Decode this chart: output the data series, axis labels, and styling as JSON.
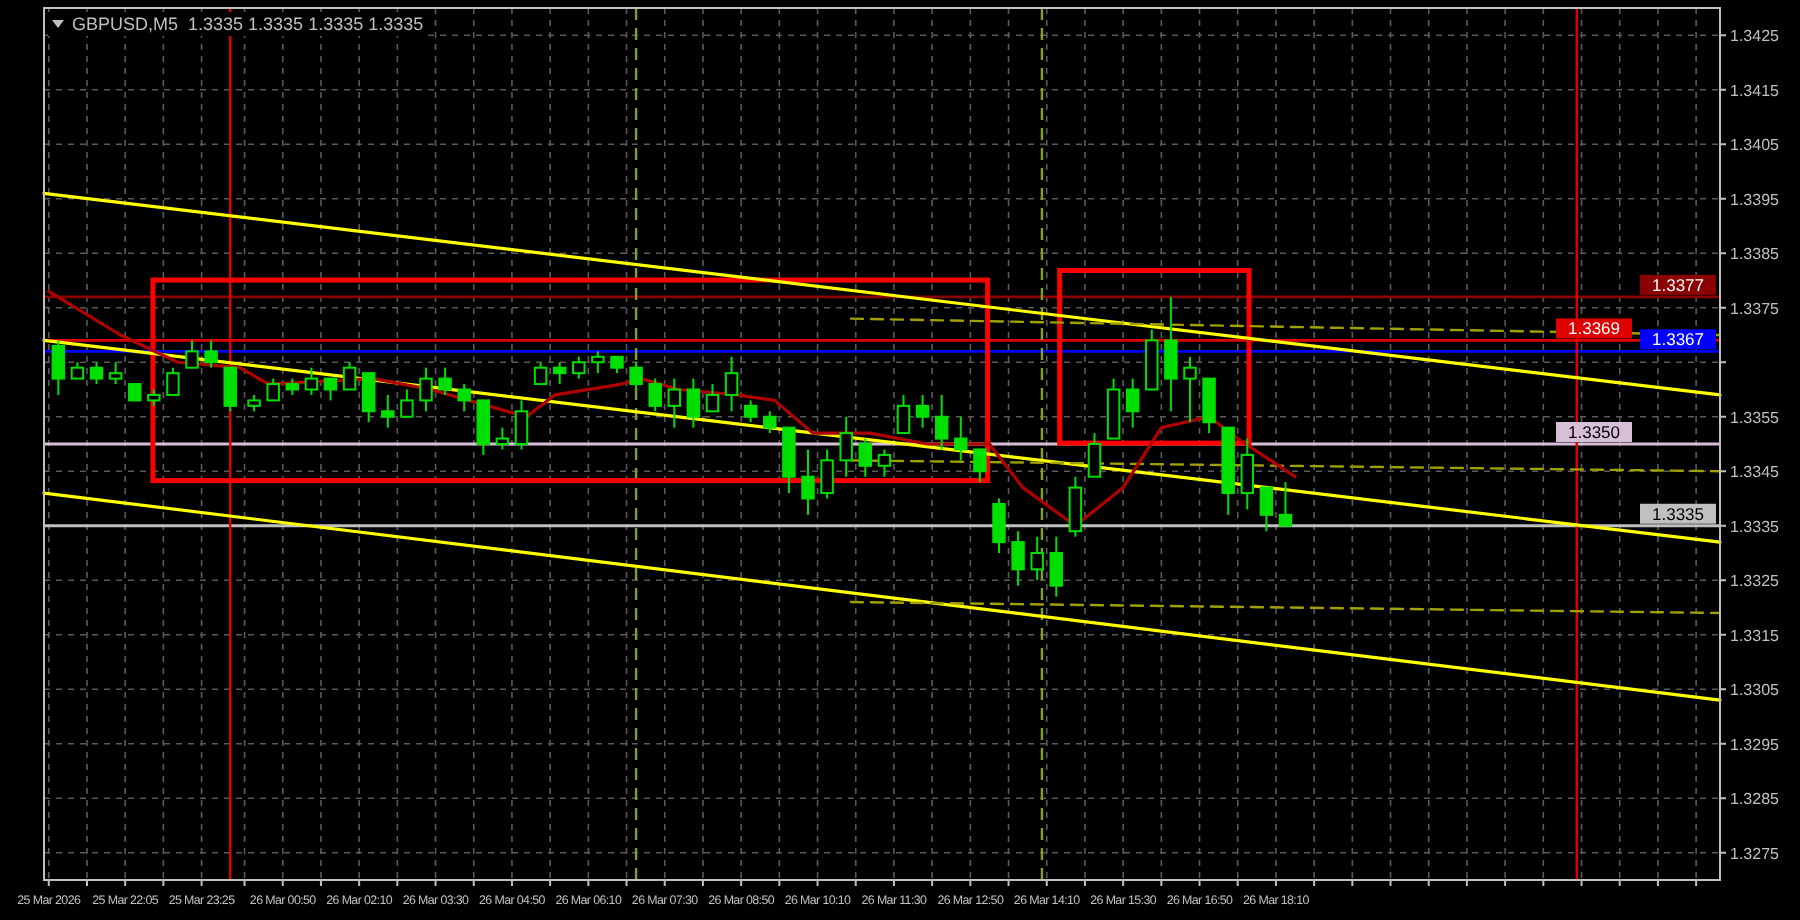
{
  "chart_data": {
    "type": "candlestick",
    "title": "GBPUSD,M5  1.3335 1.3335 1.3335 1.3335",
    "xlim": [
      "2026-03-25T20:40",
      "2026-03-27T01:55"
    ],
    "ylim": [
      1.327,
      1.343
    ],
    "xticks": [
      {
        "value": "2026-03-25T20:45",
        "label": "25 Mar 2026"
      },
      {
        "value": "2026-03-25T21:25",
        "label": null
      },
      {
        "value": "2026-03-25T22:05",
        "label": "25 Mar 22:05"
      },
      {
        "value": "2026-03-25T22:45",
        "label": null
      },
      {
        "value": "2026-03-25T23:25",
        "label": "25 Mar 23:25"
      },
      {
        "value": "2026-03-26T00:10",
        "label": null
      },
      {
        "value": "2026-03-26T00:50",
        "label": "26 Mar 00:50"
      },
      {
        "value": "2026-03-26T01:30",
        "label": null
      },
      {
        "value": "2026-03-26T02:10",
        "label": "26 Mar 02:10"
      },
      {
        "value": "2026-03-26T02:50",
        "label": null
      },
      {
        "value": "2026-03-26T03:30",
        "label": "26 Mar 03:30"
      },
      {
        "value": "2026-03-26T04:10",
        "label": null
      },
      {
        "value": "2026-03-26T04:50",
        "label": "26 Mar 04:50"
      },
      {
        "value": "2026-03-26T05:30",
        "label": null
      },
      {
        "value": "2026-03-26T06:10",
        "label": "26 Mar 06:10"
      },
      {
        "value": "2026-03-26T06:50",
        "label": null
      },
      {
        "value": "2026-03-26T07:30",
        "label": "26 Mar 07:30"
      },
      {
        "value": "2026-03-26T08:10",
        "label": null
      },
      {
        "value": "2026-03-26T08:50",
        "label": "26 Mar 08:50"
      },
      {
        "value": "2026-03-26T09:30",
        "label": null
      },
      {
        "value": "2026-03-26T10:10",
        "label": "26 Mar 10:10"
      },
      {
        "value": "2026-03-26T10:50",
        "label": null
      },
      {
        "value": "2026-03-26T11:30",
        "label": "26 Mar 11:30"
      },
      {
        "value": "2026-03-26T12:10",
        "label": null
      },
      {
        "value": "2026-03-26T12:50",
        "label": "26 Mar 12:50"
      },
      {
        "value": "2026-03-26T13:30",
        "label": null
      },
      {
        "value": "2026-03-26T14:10",
        "label": "26 Mar 14:10"
      },
      {
        "value": "2026-03-26T14:50",
        "label": null
      },
      {
        "value": "2026-03-26T15:30",
        "label": "26 Mar 15:30"
      },
      {
        "value": "2026-03-26T16:10",
        "label": null
      },
      {
        "value": "2026-03-26T16:50",
        "label": "26 Mar 16:50"
      },
      {
        "value": "2026-03-26T17:30",
        "label": null
      },
      {
        "value": "2026-03-26T18:10",
        "label": "26 Mar 18:10"
      },
      {
        "value": "2026-03-26T18:50",
        "label": null
      },
      {
        "value": "2026-03-26T19:30",
        "label": null
      },
      {
        "value": "2026-03-26T20:10",
        "label": null
      },
      {
        "value": "2026-03-26T20:50",
        "label": null
      },
      {
        "value": "2026-03-26T21:30",
        "label": null
      },
      {
        "value": "2026-03-26T22:10",
        "label": null
      },
      {
        "value": "2026-03-26T22:50",
        "label": null
      },
      {
        "value": "2026-03-26T23:30",
        "label": null
      },
      {
        "value": "2026-03-27T00:10",
        "label": null
      },
      {
        "value": "2026-03-27T00:50",
        "label": null
      },
      {
        "value": "2026-03-27T01:30",
        "label": null
      }
    ],
    "yticks": [
      1.3275,
      1.3285,
      1.3295,
      1.3305,
      1.3315,
      1.3325,
      1.3335,
      1.3345,
      1.3355,
      {
        "value": 1.3365,
        "label": null
      },
      1.3375,
      1.3385,
      1.3395,
      1.3405,
      1.3415,
      1.3425
    ],
    "grid": true,
    "ref_lines": [
      {
        "axis": "y",
        "value": 1.3377,
        "label": "1.3377",
        "color": "#8b0000"
      },
      {
        "axis": "y",
        "value": 1.3369,
        "label": "1.3369",
        "color": "#e00000"
      },
      {
        "axis": "y",
        "value": 1.3367,
        "label": "1.3367",
        "color": "#0000ff"
      },
      {
        "axis": "y",
        "value": 1.335,
        "label": "1.3350",
        "color": "#d8bfd8"
      },
      {
        "axis": "y",
        "value": 1.3335,
        "label": "1.3335",
        "color": "#c0c0c0"
      },
      {
        "axis": "x",
        "value": "2026-03-25T23:55",
        "color": "#e00000"
      },
      {
        "axis": "x",
        "value": "2026-03-26T23:25",
        "color": "#e00000"
      },
      {
        "axis": "x",
        "value": "2026-03-26T07:00",
        "color": "#7fa020",
        "line_style": "dashed"
      },
      {
        "axis": "x",
        "value": "2026-03-26T14:05",
        "color": "#7fa020",
        "line_style": "dashed"
      }
    ],
    "series": [
      {
        "type": "line",
        "color": "#ffff00",
        "x": [
          "2026-03-25T20:40",
          "2026-03-27T01:55"
        ],
        "values": [
          1.3396,
          1.3359
        ]
      },
      {
        "type": "line",
        "color": "#ffff00",
        "x": [
          "2026-03-25T20:40",
          "2026-03-27T01:55"
        ],
        "values": [
          1.3369,
          1.3332
        ]
      },
      {
        "type": "line",
        "color": "#ffff00",
        "x": [
          "2026-03-25T20:40",
          "2026-03-27T01:55"
        ],
        "values": [
          1.3341,
          1.3303
        ]
      },
      {
        "type": "line",
        "color": "#a0a000",
        "line_style": "dashed",
        "x": [
          "2026-03-26T10:45",
          "2026-03-27T01:55"
        ],
        "values": [
          1.3373,
          1.337
        ]
      },
      {
        "type": "line",
        "color": "#a0a000",
        "line_style": "dashed",
        "x": [
          "2026-03-26T10:45",
          "2026-03-27T01:55"
        ],
        "values": [
          1.3347,
          1.3345
        ]
      },
      {
        "type": "line",
        "color": "#a0a000",
        "line_style": "dashed",
        "x": [
          "2026-03-26T10:45",
          "2026-03-27T01:55"
        ],
        "values": [
          1.3321,
          1.3319
        ]
      },
      {
        "type": "line",
        "color": "#b00000",
        "x": [
          "2026-03-25T20:45",
          "2026-03-25T22:00",
          "2026-03-25T23:00",
          "2026-03-26T00:05",
          "2026-03-26T00:35",
          "2026-03-26T02:25",
          "2026-03-26T03:25",
          "2026-03-26T04:25",
          "2026-03-26T05:05",
          "2026-03-26T05:35",
          "2026-03-26T06:45",
          "2026-03-26T07:05",
          "2026-03-26T07:45",
          "2026-03-26T08:45",
          "2026-03-26T09:25",
          "2026-03-26T10:05",
          "2026-03-26T11:05",
          "2026-03-26T12:05",
          "2026-03-26T13:10",
          "2026-03-26T13:45",
          "2026-03-26T14:40",
          "2026-03-26T15:30",
          "2026-03-26T16:10",
          "2026-03-26T17:00",
          "2026-03-26T17:30",
          "2026-03-26T18:30"
        ],
        "values": [
          1.3378,
          1.337,
          1.3365,
          1.3364,
          1.3361,
          1.3362,
          1.336,
          1.3357,
          1.3355,
          1.3359,
          1.3361,
          1.3362,
          1.336,
          1.3359,
          1.3358,
          1.3352,
          1.3352,
          1.335,
          1.335,
          1.3342,
          1.3335,
          1.3342,
          1.3353,
          1.3355,
          1.3351,
          1.3344
        ]
      },
      {
        "color": "#00e000",
        "x": [
          "2026-03-25T20:55",
          "2026-03-25T21:15",
          "2026-03-25T21:35",
          "2026-03-25T21:55",
          "2026-03-25T22:15",
          "2026-03-25T22:35",
          "2026-03-25T22:55",
          "2026-03-25T23:15",
          "2026-03-25T23:35",
          "2026-03-25T23:55",
          "2026-03-26T00:20",
          "2026-03-26T00:40",
          "2026-03-26T01:00",
          "2026-03-26T01:20",
          "2026-03-26T01:40",
          "2026-03-26T02:00",
          "2026-03-26T02:20",
          "2026-03-26T02:40",
          "2026-03-26T03:00",
          "2026-03-26T03:20",
          "2026-03-26T03:40",
          "2026-03-26T04:00",
          "2026-03-26T04:20",
          "2026-03-26T04:40",
          "2026-03-26T05:00",
          "2026-03-26T05:20",
          "2026-03-26T05:40",
          "2026-03-26T06:00",
          "2026-03-26T06:20",
          "2026-03-26T06:40",
          "2026-03-26T07:00",
          "2026-03-26T07:20",
          "2026-03-26T07:40",
          "2026-03-26T08:00",
          "2026-03-26T08:20",
          "2026-03-26T08:40",
          "2026-03-26T09:00",
          "2026-03-26T09:20",
          "2026-03-26T09:40",
          "2026-03-26T10:00",
          "2026-03-26T10:20",
          "2026-03-26T10:40",
          "2026-03-26T11:00",
          "2026-03-26T11:20",
          "2026-03-26T11:40",
          "2026-03-26T12:00",
          "2026-03-26T12:20",
          "2026-03-26T12:40",
          "2026-03-26T13:00",
          "2026-03-26T13:20",
          "2026-03-26T13:40",
          "2026-03-26T14:00",
          "2026-03-26T14:20",
          "2026-03-26T14:40",
          "2026-03-26T15:00",
          "2026-03-26T15:20",
          "2026-03-26T15:40",
          "2026-03-26T16:00",
          "2026-03-26T16:20",
          "2026-03-26T16:40",
          "2026-03-26T17:00",
          "2026-03-26T17:20",
          "2026-03-26T17:40",
          "2026-03-26T18:00",
          "2026-03-26T18:20"
        ],
        "ohlc": [
          [
            1.3368,
            1.3369,
            1.3359,
            1.3362
          ],
          [
            1.3362,
            1.3365,
            1.3362,
            1.3364
          ],
          [
            1.3364,
            1.3365,
            1.3361,
            1.3362
          ],
          [
            1.3362,
            1.3365,
            1.3361,
            1.3363
          ],
          [
            1.3361,
            1.3361,
            1.3358,
            1.3358
          ],
          [
            1.3358,
            1.336,
            1.3357,
            1.3359
          ],
          [
            1.3359,
            1.3364,
            1.3359,
            1.3363
          ],
          [
            1.3364,
            1.3369,
            1.3364,
            1.3367
          ],
          [
            1.3367,
            1.3369,
            1.3364,
            1.3365
          ],
          [
            1.3364,
            1.3364,
            1.3356,
            1.3357
          ],
          [
            1.3357,
            1.3359,
            1.3356,
            1.3358
          ],
          [
            1.3358,
            1.3362,
            1.3358,
            1.3361
          ],
          [
            1.3361,
            1.3362,
            1.3359,
            1.336
          ],
          [
            1.336,
            1.3364,
            1.3359,
            1.3362
          ],
          [
            1.3362,
            1.3362,
            1.3358,
            1.336
          ],
          [
            1.336,
            1.3365,
            1.336,
            1.3364
          ],
          [
            1.3363,
            1.3363,
            1.3354,
            1.3356
          ],
          [
            1.3356,
            1.3359,
            1.3353,
            1.3355
          ],
          [
            1.3355,
            1.336,
            1.3355,
            1.3358
          ],
          [
            1.3358,
            1.3364,
            1.3356,
            1.3362
          ],
          [
            1.3362,
            1.3364,
            1.3359,
            1.336
          ],
          [
            1.336,
            1.3361,
            1.3356,
            1.3358
          ],
          [
            1.3358,
            1.3358,
            1.3348,
            1.335
          ],
          [
            1.335,
            1.3353,
            1.3349,
            1.3351
          ],
          [
            1.335,
            1.3358,
            1.3349,
            1.3356
          ],
          [
            1.3361,
            1.3365,
            1.3361,
            1.3364
          ],
          [
            1.3364,
            1.3365,
            1.3361,
            1.3363
          ],
          [
            1.3363,
            1.3366,
            1.3362,
            1.3365
          ],
          [
            1.3365,
            1.3367,
            1.3363,
            1.3366
          ],
          [
            1.3366,
            1.3366,
            1.3363,
            1.3364
          ],
          [
            1.3364,
            1.3365,
            1.336,
            1.3361
          ],
          [
            1.3361,
            1.3362,
            1.3356,
            1.3357
          ],
          [
            1.3357,
            1.3362,
            1.3353,
            1.336
          ],
          [
            1.336,
            1.3362,
            1.3353,
            1.3355
          ],
          [
            1.3356,
            1.3361,
            1.3356,
            1.3359
          ],
          [
            1.3359,
            1.3366,
            1.3356,
            1.3363
          ],
          [
            1.3357,
            1.3358,
            1.3354,
            1.3355
          ],
          [
            1.3355,
            1.3356,
            1.3352,
            1.3353
          ],
          [
            1.3353,
            1.3353,
            1.3341,
            1.3344
          ],
          [
            1.3344,
            1.3349,
            1.3337,
            1.334
          ],
          [
            1.3341,
            1.3349,
            1.334,
            1.3347
          ],
          [
            1.3347,
            1.3355,
            1.3344,
            1.3352
          ],
          [
            1.335,
            1.3351,
            1.3344,
            1.3346
          ],
          [
            1.3346,
            1.3349,
            1.3344,
            1.3348
          ],
          [
            1.3352,
            1.3359,
            1.3352,
            1.3357
          ],
          [
            1.3357,
            1.3359,
            1.3353,
            1.3355
          ],
          [
            1.3355,
            1.3359,
            1.3349,
            1.3351
          ],
          [
            1.3351,
            1.3355,
            1.3347,
            1.3349
          ],
          [
            1.3349,
            1.3349,
            1.3343,
            1.3345
          ],
          [
            1.3339,
            1.334,
            1.333,
            1.3332
          ],
          [
            1.3332,
            1.3334,
            1.3324,
            1.3327
          ],
          [
            1.3327,
            1.3333,
            1.3325,
            1.333
          ],
          [
            1.333,
            1.3333,
            1.3322,
            1.3324
          ],
          [
            1.3334,
            1.3344,
            1.3333,
            1.3342
          ],
          [
            1.3344,
            1.3352,
            1.3344,
            1.335
          ],
          [
            1.3351,
            1.3362,
            1.3351,
            1.336
          ],
          [
            1.336,
            1.3362,
            1.3353,
            1.3356
          ],
          [
            1.336,
            1.3371,
            1.336,
            1.3369
          ],
          [
            1.3369,
            1.3377,
            1.3356,
            1.3362
          ],
          [
            1.3362,
            1.3366,
            1.3354,
            1.3364
          ],
          [
            1.3362,
            1.3362,
            1.3352,
            1.3354
          ],
          [
            1.3353,
            1.3353,
            1.3337,
            1.3341
          ],
          [
            1.3341,
            1.3351,
            1.3338,
            1.3348
          ],
          [
            1.3342,
            1.3342,
            1.3334,
            1.3337
          ],
          [
            1.3337,
            1.3343,
            1.3335,
            1.3335
          ]
        ]
      }
    ]
  }
}
